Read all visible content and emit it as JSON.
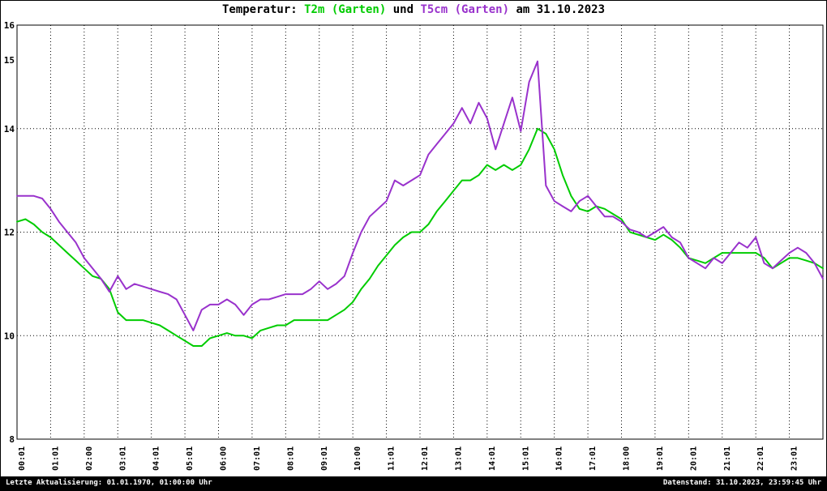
{
  "title": {
    "prefix": "Temperatur: ",
    "series1": "T2m (Garten)",
    "connector": " und ",
    "series2": "T5cm (Garten)",
    "suffix": " am 31.10.2023"
  },
  "colors": {
    "t2m": "#00cc00",
    "t5cm": "#9932cc",
    "grid": "#000000",
    "background": "#ffffff",
    "statusbar_bg": "#000000",
    "statusbar_text": "#ffffff"
  },
  "statusbar": {
    "left": "Letzte Aktualisierung: 01.01.1970, 01:00:00 Uhr",
    "right": "Datenstand: 31.10.2023, 23:59:45 Uhr"
  },
  "chart_data": {
    "type": "line",
    "title": "Temperatur: T2m (Garten) und T5cm (Garten) am 31.10.2023",
    "xlabel": "",
    "ylabel": "",
    "xlim_hours": [
      0,
      24
    ],
    "ylim": [
      8,
      16
    ],
    "grid": "dotted",
    "legend_position": "in-title",
    "x_step_minutes": 15,
    "x_tick_labels": [
      "00:01",
      "01:01",
      "02:00",
      "03:01",
      "04:01",
      "05:01",
      "06:00",
      "07:01",
      "08:01",
      "09:01",
      "10:00",
      "11:01",
      "12:01",
      "13:01",
      "14:01",
      "15:01",
      "16:01",
      "17:01",
      "18:00",
      "19:01",
      "20:01",
      "21:01",
      "22:01",
      "23:01"
    ],
    "y_tick_labels": [
      {
        "value": 16,
        "label": "16"
      },
      {
        "value": 15.33,
        "label": "15"
      },
      {
        "value": 14,
        "label": "14"
      },
      {
        "value": 12,
        "label": "12"
      },
      {
        "value": 10,
        "label": "10"
      },
      {
        "value": 8,
        "label": "8"
      }
    ],
    "y_gridlines": [
      14,
      12,
      10
    ],
    "x_gridlines_every_hour": true,
    "series": [
      {
        "name": "T2m (Garten)",
        "color": "#00cc00",
        "values": [
          12.2,
          12.25,
          12.15,
          12.0,
          11.9,
          11.75,
          11.6,
          11.45,
          11.3,
          11.15,
          11.1,
          10.9,
          10.45,
          10.3,
          10.3,
          10.3,
          10.25,
          10.2,
          10.1,
          10.0,
          9.9,
          9.8,
          9.8,
          9.95,
          10.0,
          10.05,
          10.0,
          10.0,
          9.95,
          10.1,
          10.15,
          10.2,
          10.2,
          10.3,
          10.3,
          10.3,
          10.3,
          10.3,
          10.4,
          10.5,
          10.65,
          10.9,
          11.1,
          11.35,
          11.55,
          11.75,
          11.9,
          12.0,
          12.0,
          12.15,
          12.4,
          12.6,
          12.8,
          13.0,
          13.0,
          13.1,
          13.3,
          13.2,
          13.3,
          13.2,
          13.3,
          13.6,
          14.0,
          13.9,
          13.6,
          13.1,
          12.7,
          12.45,
          12.4,
          12.5,
          12.45,
          12.35,
          12.25,
          12.0,
          11.95,
          11.9,
          11.85,
          11.95,
          11.85,
          11.7,
          11.5,
          11.45,
          11.4,
          11.5,
          11.6,
          11.6,
          11.6,
          11.6,
          11.6,
          11.5,
          11.3,
          11.4,
          11.5,
          11.5,
          11.45,
          11.4,
          11.3
        ]
      },
      {
        "name": "T5cm (Garten)",
        "color": "#9932cc",
        "values": [
          12.7,
          12.7,
          12.7,
          12.65,
          12.45,
          12.2,
          12.0,
          11.8,
          11.5,
          11.3,
          11.1,
          10.85,
          11.15,
          10.9,
          11.0,
          10.95,
          10.9,
          10.85,
          10.8,
          10.7,
          10.4,
          10.1,
          10.5,
          10.6,
          10.6,
          10.7,
          10.6,
          10.4,
          10.6,
          10.7,
          10.7,
          10.75,
          10.8,
          10.8,
          10.8,
          10.9,
          11.05,
          10.9,
          11.0,
          11.15,
          11.6,
          12.0,
          12.3,
          12.45,
          12.6,
          13.0,
          12.9,
          13.0,
          13.1,
          13.5,
          13.7,
          13.9,
          14.1,
          14.4,
          14.1,
          14.5,
          14.2,
          13.6,
          14.1,
          14.6,
          13.95,
          14.9,
          15.3,
          12.9,
          12.6,
          12.5,
          12.4,
          12.6,
          12.7,
          12.5,
          12.3,
          12.3,
          12.2,
          12.05,
          12.0,
          11.9,
          12.0,
          12.1,
          11.9,
          11.8,
          11.5,
          11.4,
          11.3,
          11.5,
          11.4,
          11.6,
          11.8,
          11.7,
          11.9,
          11.4,
          11.3,
          11.45,
          11.6,
          11.7,
          11.6,
          11.4,
          11.1
        ]
      }
    ]
  }
}
